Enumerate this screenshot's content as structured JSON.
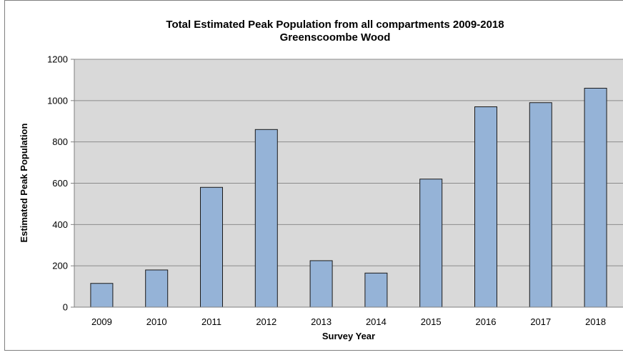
{
  "chart_data": {
    "type": "bar",
    "title": "Total Estimated Peak Population from all compartments 2009-2018",
    "subtitle": "Greenscoombe Wood",
    "xlabel": "Survey Year",
    "ylabel": "Estimated Peak Population",
    "categories": [
      "2009",
      "2010",
      "2011",
      "2012",
      "2013",
      "2014",
      "2015",
      "2016",
      "2017",
      "2018"
    ],
    "values": [
      115,
      180,
      580,
      860,
      225,
      165,
      620,
      970,
      990,
      1060
    ],
    "ylim": [
      0,
      1200
    ],
    "yticks": [
      "0",
      "200",
      "400",
      "600",
      "800",
      "1000",
      "1200"
    ],
    "grid": true,
    "legend": "none",
    "colors": {
      "bar_fill": "#95b3d7",
      "bar_stroke": "#1a1a1a",
      "plot_bg": "#d9d9d9",
      "gridline": "#8c8c8c",
      "frame": "#7f7f7f"
    }
  }
}
